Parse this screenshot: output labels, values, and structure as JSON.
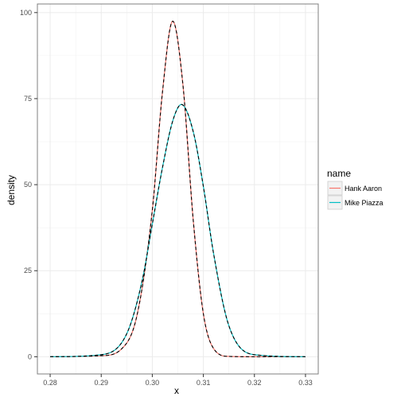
{
  "chart_data": {
    "type": "line",
    "title": "",
    "xlabel": "x",
    "ylabel": "density",
    "xlim": [
      0.28,
      0.33
    ],
    "ylim": [
      0,
      100
    ],
    "x_ticks": [
      "0.28",
      "0.29",
      "0.30",
      "0.31",
      "0.32",
      "0.33"
    ],
    "y_ticks": [
      "0",
      "25",
      "50",
      "75",
      "100"
    ],
    "grid": true,
    "legend_position": "right",
    "legend_title": "name",
    "series": [
      {
        "name": "Hank Aaron",
        "color": "#F8766D",
        "overlay_color": "#000000",
        "overlay_style": "dashed",
        "x": [
          0.28,
          0.29,
          0.294,
          0.297,
          0.3,
          0.302,
          0.304,
          0.306,
          0.308,
          0.31,
          0.312,
          0.315,
          0.32,
          0.33
        ],
        "y": [
          0,
          0.3,
          2.3,
          12.0,
          42.5,
          77.0,
          97.5,
          79.0,
          40.0,
          12.5,
          2.4,
          0.1,
          0,
          0
        ]
      },
      {
        "name": "Mike Piazza",
        "color": "#00BFC4",
        "overlay_color": "#000000",
        "overlay_style": "dashed",
        "x": [
          0.28,
          0.29,
          0.295,
          0.298,
          0.3,
          0.302,
          0.304,
          0.3057,
          0.308,
          0.31,
          0.312,
          0.315,
          0.32,
          0.33
        ],
        "y": [
          0,
          0.6,
          6.7,
          22.0,
          38.5,
          55.0,
          68.5,
          73.3,
          65.5,
          49.5,
          30.0,
          9.0,
          0.6,
          0
        ]
      }
    ]
  }
}
